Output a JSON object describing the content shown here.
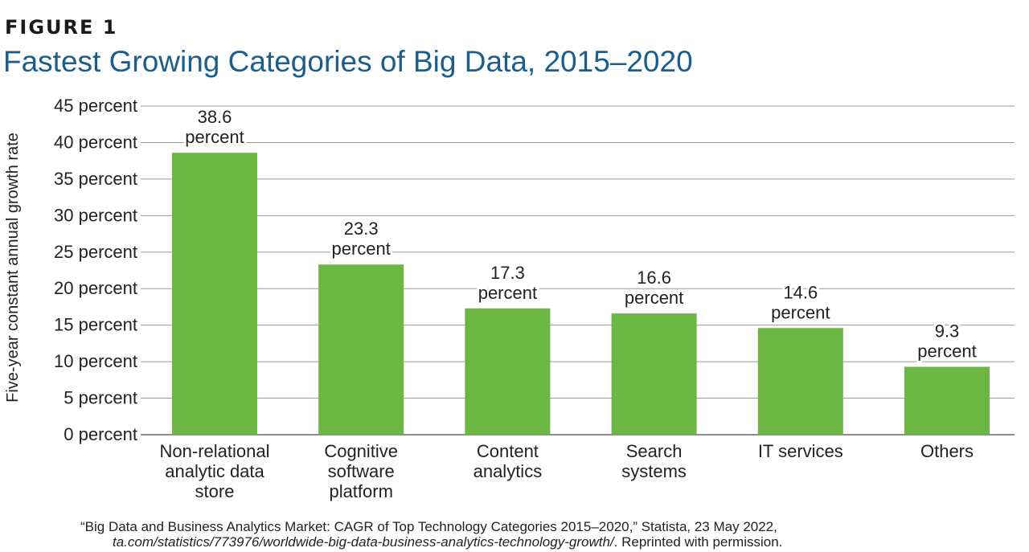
{
  "figure_label": "FIGURE 1",
  "title": "Fastest Growing Categories of Big Data, 2015–2020",
  "source": {
    "line1": "“Big Data and Business Analytics Market: CAGR of Top Technology Categories 2015–2020,” Statista, 23 May 2022,",
    "line2_url": "ta.com/statistics/773976/worldwide-big-data-business-analytics-technology-growth/",
    "line2_suffix": ". Reprinted with permission."
  },
  "colors": {
    "bar": "#6cb643",
    "title": "#1b5e8c",
    "grid": "#9a9a9a"
  },
  "chart_data": {
    "type": "bar",
    "title": "Fastest Growing Categories of Big Data, 2015–2020",
    "xlabel": "",
    "ylabel": "Five-year constant annual growth rate",
    "ylim": [
      0,
      45
    ],
    "yticks": [
      0,
      5,
      10,
      15,
      20,
      25,
      30,
      35,
      40,
      45
    ],
    "ytick_labels": [
      "0 percent",
      "5 percent",
      "10 percent",
      "15 percent",
      "20 percent",
      "25 percent",
      "30 percent",
      "35 percent",
      "40 percent",
      "45 percent"
    ],
    "categories": [
      [
        "Non-relational",
        "analytic data",
        "store"
      ],
      [
        "Cognitive",
        "software",
        "platform"
      ],
      [
        "Content",
        "analytics"
      ],
      [
        "Search",
        "systems"
      ],
      [
        "IT services"
      ],
      [
        "Others"
      ]
    ],
    "values": [
      38.6,
      23.3,
      17.3,
      16.6,
      14.6,
      9.3
    ],
    "value_labels": [
      [
        "38.6",
        "percent"
      ],
      [
        "23.3",
        "percent"
      ],
      [
        "17.3",
        "percent"
      ],
      [
        "16.6",
        "percent"
      ],
      [
        "14.6",
        "percent"
      ],
      [
        "9.3",
        "percent"
      ]
    ],
    "grid": true
  }
}
